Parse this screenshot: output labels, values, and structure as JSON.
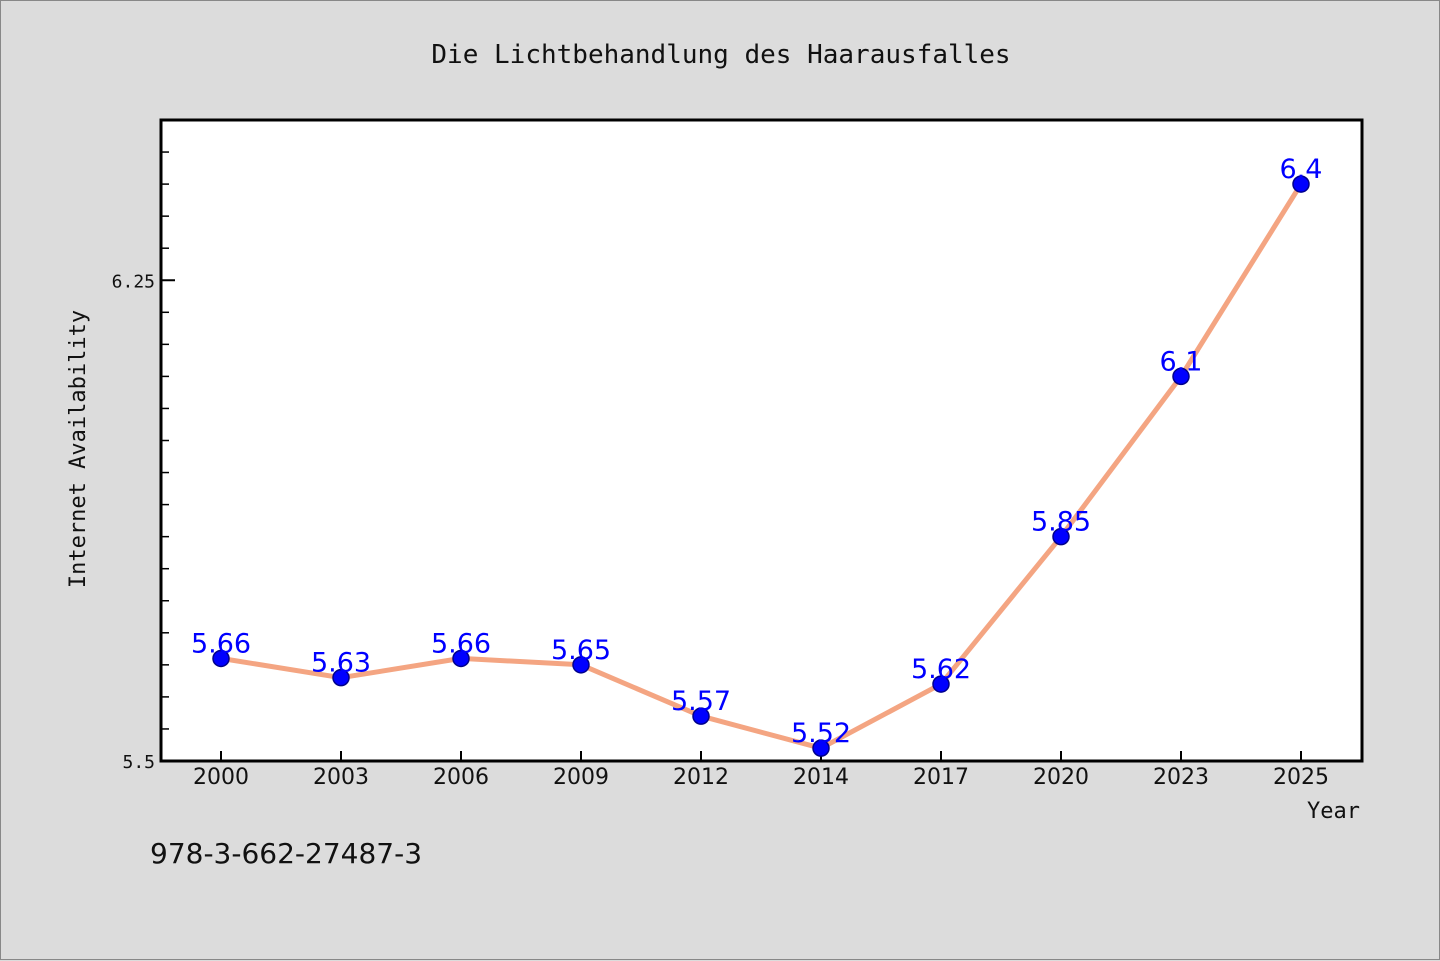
{
  "chart_data": {
    "type": "line",
    "title": "Die Lichtbehandlung des Haarausfalles",
    "xlabel": "Year",
    "ylabel": "Internet Availability",
    "categories": [
      "2000",
      "2003",
      "2006",
      "2009",
      "2012",
      "2014",
      "2017",
      "2020",
      "2023",
      "2025"
    ],
    "series": [
      {
        "values": [
          5.66,
          5.63,
          5.66,
          5.65,
          5.57,
          5.52,
          5.62,
          5.85,
          6.1,
          6.4
        ],
        "data_labels": [
          "5.66",
          "5.63",
          "5.66",
          "5.65",
          "5.57",
          "5.52",
          "5.62",
          "5.85",
          "6.1",
          "6.4"
        ]
      }
    ],
    "y_ticks": [
      {
        "value": 5.5,
        "label": "5.5"
      },
      {
        "value": 6.25,
        "label": "6.25"
      }
    ],
    "ylim": [
      5.5,
      6.5
    ],
    "grid": false,
    "legend": "none",
    "line_color": "#f4a582",
    "marker_color": "#0000ff",
    "label_color": "#0000ff"
  },
  "footnote": "978-3-662-27487-3"
}
